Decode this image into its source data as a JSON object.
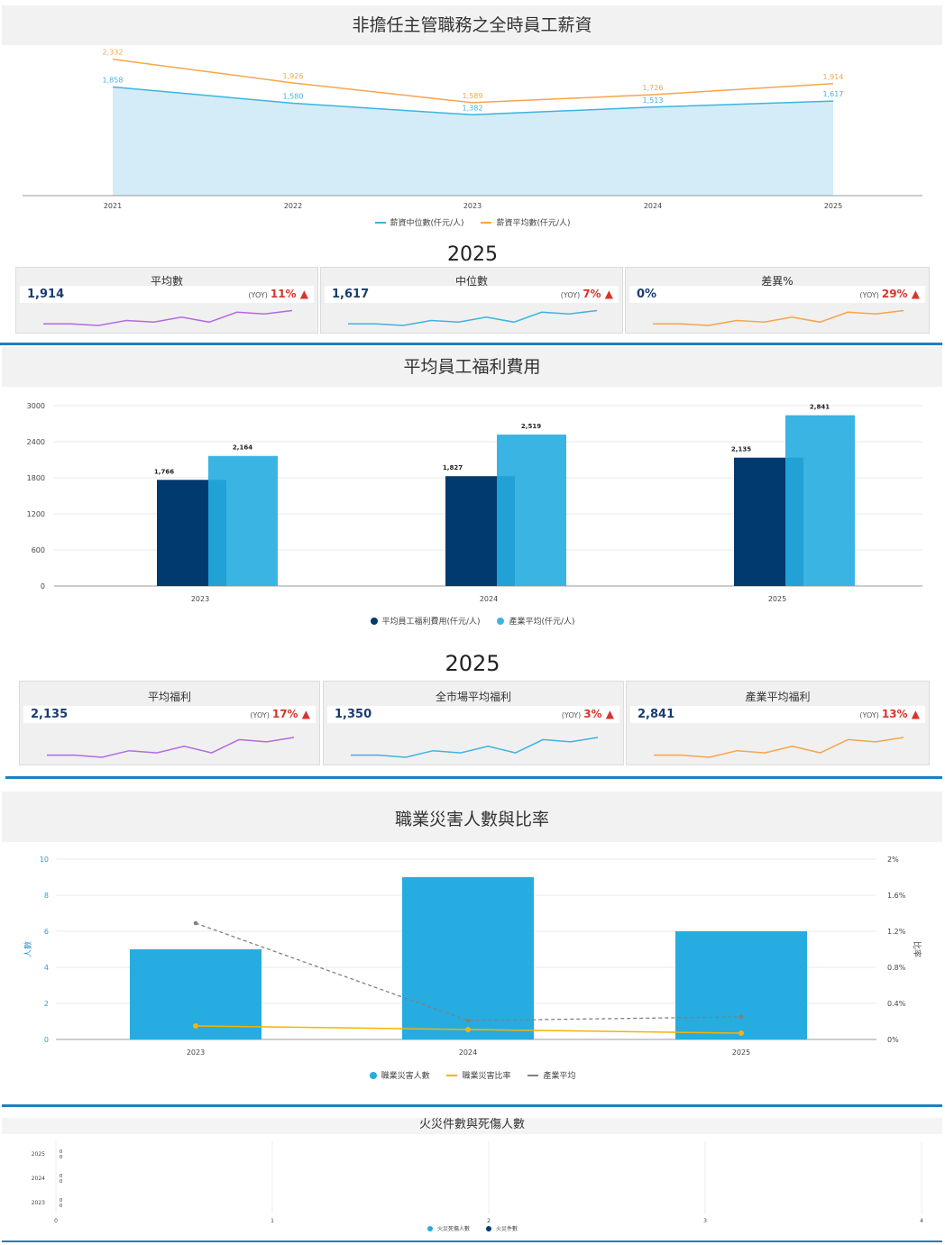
{
  "section1": {
    "title": "非擔任主管職務之全時員工薪資",
    "legend": [
      "薪資中位數(仟元/人)",
      "薪資平均數(仟元/人)"
    ],
    "year": "2025",
    "kpis": [
      {
        "title": "平均數",
        "value": "1,914",
        "yoy_label": "(YOY)",
        "yoy": "11%"
      },
      {
        "title": "中位數",
        "value": "1,617",
        "yoy_label": "(YOY)",
        "yoy": "7%"
      },
      {
        "title": "差異%",
        "value": "0%",
        "yoy_label": "(YOY)",
        "yoy": "29%"
      }
    ]
  },
  "section2": {
    "title": "平均員工福利費用",
    "legend": [
      "平均員工福利費用(仟元/人)",
      "產業平均(仟元/人)"
    ],
    "year": "2025",
    "kpis": [
      {
        "title": "平均福利",
        "value": "2,135",
        "yoy_label": "(YOY)",
        "yoy": "17%"
      },
      {
        "title": "全市場平均福利",
        "value": "1,350",
        "yoy_label": "(YOY)",
        "yoy": "3%"
      },
      {
        "title": "產業平均福利",
        "value": "2,841",
        "yoy_label": "(YOY)",
        "yoy": "13%"
      }
    ]
  },
  "section3": {
    "title": "職業災害人數與比率",
    "legend": [
      "職業災害人數",
      "職業災害比率",
      "產業平均"
    ],
    "ylabel_left": "人數",
    "ylabel_right": "比率"
  },
  "section4": {
    "title": "火災件數與死傷人數",
    "legend": [
      "火災死傷人數",
      "火災件數"
    ]
  },
  "colors": {
    "median": "#3cb4e0",
    "mean": "#f5a54a",
    "navy": "#003a6e",
    "sky": "#3ab4e3",
    "occ_bar": "#26ace0",
    "occ_rate": "#f5b400",
    "industry": "#808080",
    "spark_purple": "#b36ae2",
    "spark_blue": "#3cb4e0",
    "spark_orange": "#f5a54a",
    "up": "#d9342b"
  },
  "chart_data": [
    {
      "type": "area",
      "categories": [
        "2021",
        "2022",
        "2023",
        "2024",
        "2025"
      ],
      "series": [
        {
          "name": "薪資中位數(仟元/人)",
          "values": [
            1858,
            1580,
            1382,
            1513,
            1617
          ],
          "labels": [
            "1,858",
            "1,580",
            "1,382",
            "1,513",
            "1,617"
          ]
        },
        {
          "name": "薪資平均數(仟元/人)",
          "values": [
            2332,
            1926,
            1589,
            1726,
            1914
          ],
          "labels": [
            "2,332",
            "1,926",
            "1,589",
            "1,726",
            "1,914"
          ]
        }
      ]
    },
    {
      "type": "bar",
      "categories": [
        "2023",
        "2024",
        "2025"
      ],
      "series": [
        {
          "name": "平均員工福利費用(仟元/人)",
          "values": [
            1766,
            1827,
            2135
          ],
          "labels": [
            "1,766",
            "1,827",
            "2,135"
          ]
        },
        {
          "name": "產業平均(仟元/人)",
          "values": [
            2164,
            2519,
            2841
          ],
          "labels": [
            "2,164",
            "2,519",
            "2,841"
          ]
        }
      ],
      "yticks": [
        "0",
        "600",
        "1200",
        "1800",
        "2400",
        "3000"
      ],
      "ylim": [
        0,
        3000
      ],
      "grid": true
    },
    {
      "type": "bar",
      "categories": [
        "2023",
        "2024",
        "2025"
      ],
      "series": [
        {
          "name": "職業災害人數",
          "values": [
            5,
            9,
            6
          ],
          "axis": "left"
        },
        {
          "name": "職業災害比率",
          "values": [
            0.15,
            0.11,
            0.07
          ],
          "axis": "right"
        },
        {
          "name": "產業平均",
          "values": [
            1.29,
            0.21,
            0.25
          ],
          "axis": "right"
        }
      ],
      "yticks_left": [
        "0",
        "2",
        "4",
        "6",
        "8",
        "10"
      ],
      "yticks_right": [
        "0%",
        "0.4%",
        "0.8%",
        "1.2%",
        "1.6%",
        "2%"
      ],
      "ylim_left": [
        0,
        10
      ],
      "ylim_right": [
        0,
        2
      ],
      "ylabel_left": "人數",
      "ylabel_right": "比率",
      "grid": true
    },
    {
      "type": "bar",
      "orientation": "horizontal",
      "categories": [
        "2025",
        "2024",
        "2023"
      ],
      "series": [
        {
          "name": "火災死傷人數",
          "values": [
            0,
            0,
            0
          ],
          "labels": [
            "0",
            "0",
            "0"
          ]
        },
        {
          "name": "火災件數",
          "values": [
            0,
            0,
            0
          ],
          "labels": [
            "0",
            "0",
            "0"
          ]
        }
      ],
      "xticks": [
        "0",
        "1",
        "2",
        "3",
        "4"
      ],
      "xlim": [
        0,
        4
      ],
      "grid": true
    }
  ],
  "sparklines": {
    "sal_mean": [
      2,
      2,
      1,
      4,
      3,
      6,
      3,
      9,
      8,
      10
    ],
    "sal_median": [
      2,
      2,
      1,
      4,
      3,
      6,
      3,
      9,
      8,
      10
    ],
    "sal_diff": [
      2,
      2,
      1,
      4,
      3,
      6,
      3,
      9,
      8,
      10
    ],
    "ben_avg": [
      2,
      2,
      1,
      4,
      3,
      6,
      3,
      9,
      8,
      10
    ],
    "ben_market": [
      2,
      2,
      1,
      4,
      3,
      6,
      3,
      9,
      8,
      10
    ],
    "ben_industry": [
      2,
      2,
      1,
      4,
      3,
      6,
      3,
      9,
      8,
      10
    ]
  }
}
